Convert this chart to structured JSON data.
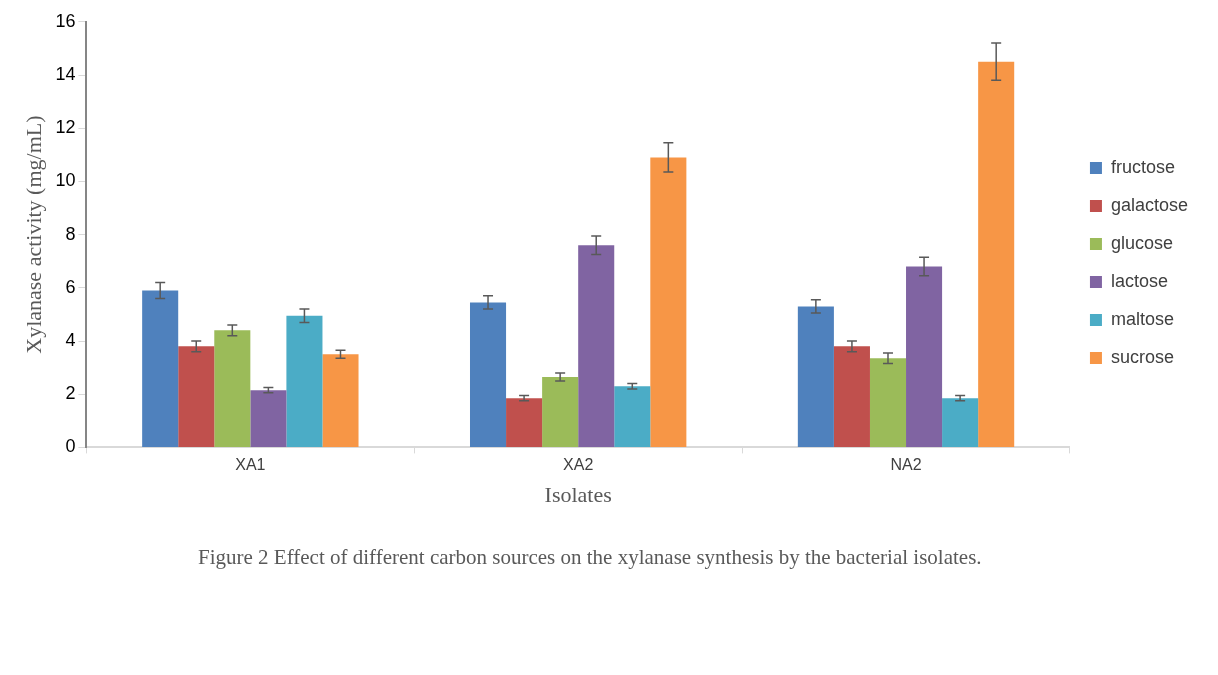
{
  "chart_data": {
    "type": "bar",
    "xlabel": "Isolates",
    "ylabel": "Xylanase activity (mg/mL)",
    "categories": [
      "XA1",
      "XA2",
      "NA2"
    ],
    "series": [
      {
        "name": "fructose",
        "color": "#4f81bd",
        "values": [
          5.9,
          5.45,
          5.3
        ],
        "errors": [
          0.3,
          0.25,
          0.25
        ]
      },
      {
        "name": "galactose",
        "color": "#c0504d",
        "values": [
          3.8,
          1.85,
          3.8
        ],
        "errors": [
          0.2,
          0.1,
          0.2
        ]
      },
      {
        "name": "glucose",
        "color": "#9bbb59",
        "values": [
          4.4,
          2.65,
          3.35
        ],
        "errors": [
          0.2,
          0.15,
          0.2
        ]
      },
      {
        "name": "lactose",
        "color": "#8064a2",
        "values": [
          2.15,
          7.6,
          6.8
        ],
        "errors": [
          0.1,
          0.35,
          0.35
        ]
      },
      {
        "name": "maltose",
        "color": "#4bacc6",
        "values": [
          4.95,
          2.3,
          1.85
        ],
        "errors": [
          0.25,
          0.1,
          0.1
        ]
      },
      {
        "name": "sucrose",
        "color": "#f79646",
        "values": [
          3.5,
          10.9,
          14.5
        ],
        "errors": [
          0.15,
          0.55,
          0.7
        ]
      }
    ],
    "ylim": [
      0,
      16
    ],
    "yticks": [
      0,
      2,
      4,
      6,
      8,
      10,
      12,
      14,
      16
    ],
    "grid": false,
    "legend": "right",
    "annotations": [
      "Figure 2  Effect of different carbon sources on the xylanase synthesis by the bacterial isolates."
    ]
  }
}
